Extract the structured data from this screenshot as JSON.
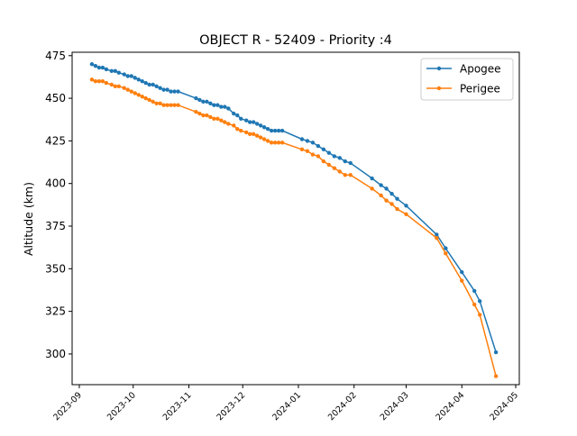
{
  "chart_data": {
    "type": "line",
    "title": "OBJECT R - 52409 - Priority :4",
    "xlabel": "",
    "ylabel": "Altitude (km)",
    "x_axis": "date",
    "xlim": [
      "2023-08-28",
      "2024-05-03"
    ],
    "ylim": [
      282,
      477
    ],
    "x_ticks": [
      "2023-09",
      "2023-10",
      "2023-11",
      "2023-12",
      "2024-01",
      "2024-02",
      "2024-03",
      "2024-04",
      "2024-05"
    ],
    "y_ticks": [
      300,
      325,
      350,
      375,
      400,
      425,
      450,
      475
    ],
    "grid": false,
    "legend_position": "top-right",
    "series": [
      {
        "name": "Apogee",
        "color": "#1f77b4",
        "x": [
          "2023-09-08",
          "2023-09-10",
          "2023-09-12",
          "2023-09-14",
          "2023-09-16",
          "2023-09-19",
          "2023-09-21",
          "2023-09-23",
          "2023-09-26",
          "2023-09-28",
          "2023-09-30",
          "2023-10-02",
          "2023-10-04",
          "2023-10-06",
          "2023-10-08",
          "2023-10-10",
          "2023-10-12",
          "2023-10-14",
          "2023-10-16",
          "2023-10-18",
          "2023-10-20",
          "2023-10-22",
          "2023-10-24",
          "2023-10-26",
          "2023-11-05",
          "2023-11-07",
          "2023-11-09",
          "2023-11-11",
          "2023-11-13",
          "2023-11-15",
          "2023-11-17",
          "2023-11-19",
          "2023-11-21",
          "2023-11-23",
          "2023-11-26",
          "2023-11-28",
          "2023-11-30",
          "2023-12-03",
          "2023-12-05",
          "2023-12-07",
          "2023-12-09",
          "2023-12-11",
          "2023-12-13",
          "2023-12-15",
          "2023-12-17",
          "2023-12-19",
          "2023-12-21",
          "2023-12-23",
          "2024-01-03",
          "2024-01-06",
          "2024-01-09",
          "2024-01-12",
          "2024-01-15",
          "2024-01-18",
          "2024-01-21",
          "2024-01-24",
          "2024-01-27",
          "2024-01-30",
          "2024-02-11",
          "2024-02-16",
          "2024-02-19",
          "2024-02-22",
          "2024-02-25",
          "2024-03-01",
          "2024-03-18",
          "2024-03-23",
          "2024-04-01",
          "2024-04-08",
          "2024-04-11",
          "2024-04-20"
        ],
        "y": [
          470,
          469,
          468,
          468,
          467,
          466,
          466,
          465,
          464,
          463,
          463,
          462,
          461,
          460,
          459,
          458,
          458,
          457,
          456,
          455,
          455,
          454,
          454,
          454,
          450,
          449,
          448,
          448,
          447,
          446,
          446,
          445,
          445,
          444,
          441,
          440,
          438,
          437,
          436,
          436,
          435,
          434,
          433,
          432,
          431,
          431,
          431,
          431,
          426,
          425,
          424,
          422,
          420,
          418,
          416,
          415,
          413,
          412,
          403,
          399,
          397,
          394,
          391,
          387,
          370,
          362,
          348,
          337,
          331,
          301
        ]
      },
      {
        "name": "Perigee",
        "color": "#ff7f0e",
        "x": [
          "2023-09-08",
          "2023-09-10",
          "2023-09-12",
          "2023-09-14",
          "2023-09-16",
          "2023-09-19",
          "2023-09-21",
          "2023-09-23",
          "2023-09-26",
          "2023-09-28",
          "2023-09-30",
          "2023-10-02",
          "2023-10-04",
          "2023-10-06",
          "2023-10-08",
          "2023-10-10",
          "2023-10-12",
          "2023-10-14",
          "2023-10-16",
          "2023-10-18",
          "2023-10-20",
          "2023-10-22",
          "2023-10-24",
          "2023-10-26",
          "2023-11-05",
          "2023-11-07",
          "2023-11-09",
          "2023-11-11",
          "2023-11-13",
          "2023-11-15",
          "2023-11-17",
          "2023-11-19",
          "2023-11-21",
          "2023-11-23",
          "2023-11-26",
          "2023-11-28",
          "2023-11-30",
          "2023-12-03",
          "2023-12-05",
          "2023-12-07",
          "2023-12-09",
          "2023-12-11",
          "2023-12-13",
          "2023-12-15",
          "2023-12-17",
          "2023-12-19",
          "2023-12-21",
          "2023-12-23",
          "2024-01-03",
          "2024-01-06",
          "2024-01-09",
          "2024-01-12",
          "2024-01-15",
          "2024-01-18",
          "2024-01-21",
          "2024-01-24",
          "2024-01-27",
          "2024-01-30",
          "2024-02-11",
          "2024-02-16",
          "2024-02-19",
          "2024-02-22",
          "2024-02-25",
          "2024-03-01",
          "2024-03-18",
          "2024-03-23",
          "2024-04-01",
          "2024-04-08",
          "2024-04-11",
          "2024-04-20"
        ],
        "y": [
          461,
          460,
          460,
          460,
          459,
          458,
          457,
          457,
          456,
          455,
          454,
          453,
          452,
          451,
          450,
          449,
          448,
          447,
          447,
          446,
          446,
          446,
          446,
          446,
          442,
          441,
          440,
          440,
          439,
          438,
          438,
          437,
          436,
          435,
          434,
          432,
          431,
          430,
          429,
          429,
          428,
          427,
          426,
          425,
          424,
          424,
          424,
          424,
          420,
          419,
          417,
          416,
          413,
          411,
          409,
          407,
          405,
          405,
          397,
          393,
          390,
          388,
          385,
          382,
          368,
          359,
          343,
          329,
          323,
          287
        ]
      }
    ]
  }
}
